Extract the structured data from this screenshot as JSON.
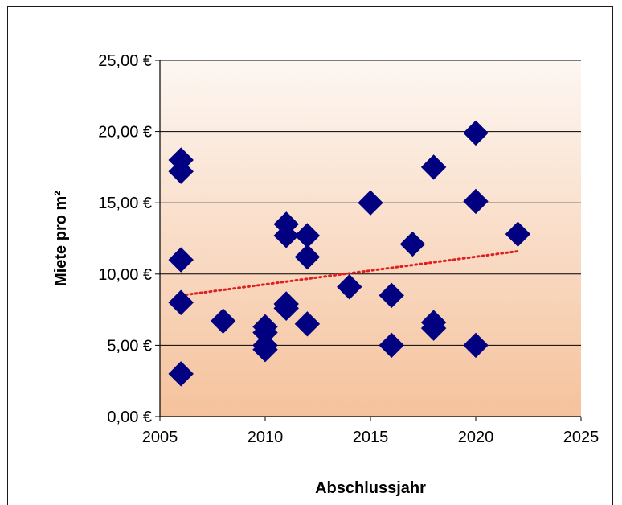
{
  "chart_data": {
    "type": "scatter",
    "title": "",
    "xlabel": "Abschlussjahr",
    "ylabel": "Miete pro m²",
    "xlim": [
      2005,
      2025
    ],
    "ylim": [
      0,
      25
    ],
    "x_ticks": [
      2005,
      2010,
      2015,
      2020,
      2025
    ],
    "x_tick_labels": [
      "2005",
      "2010",
      "2015",
      "2020",
      "2025"
    ],
    "y_ticks": [
      0,
      5,
      10,
      15,
      20,
      25
    ],
    "y_tick_labels": [
      "0,00 €",
      "5,00 €",
      "10,00 €",
      "15,00 €",
      "20,00 €",
      "25,00 €"
    ],
    "grid": "horizontal",
    "legend": "none",
    "marker": "diamond",
    "colors": {
      "marker": "#000080",
      "trendline": "#e02020",
      "plot_bg_top": "#fdf7f2",
      "plot_bg_bottom": "#f5c29c",
      "gridline": "#000000"
    },
    "series": [
      {
        "points": [
          {
            "x": 2006,
            "y": 18.0
          },
          {
            "x": 2006,
            "y": 17.2
          },
          {
            "x": 2006,
            "y": 11.0
          },
          {
            "x": 2006,
            "y": 8.0
          },
          {
            "x": 2006,
            "y": 3.0
          },
          {
            "x": 2008,
            "y": 6.7
          },
          {
            "x": 2010,
            "y": 6.3
          },
          {
            "x": 2010,
            "y": 5.9
          },
          {
            "x": 2010,
            "y": 5.0
          },
          {
            "x": 2010,
            "y": 4.7
          },
          {
            "x": 2011,
            "y": 13.5
          },
          {
            "x": 2011,
            "y": 12.7
          },
          {
            "x": 2011,
            "y": 7.9
          },
          {
            "x": 2011,
            "y": 7.6
          },
          {
            "x": 2012,
            "y": 12.7
          },
          {
            "x": 2012,
            "y": 11.2
          },
          {
            "x": 2012,
            "y": 6.5
          },
          {
            "x": 2014,
            "y": 9.1
          },
          {
            "x": 2015,
            "y": 15.0
          },
          {
            "x": 2016,
            "y": 8.5
          },
          {
            "x": 2016,
            "y": 5.0
          },
          {
            "x": 2017,
            "y": 12.1
          },
          {
            "x": 2018,
            "y": 17.5
          },
          {
            "x": 2018,
            "y": 6.6
          },
          {
            "x": 2018,
            "y": 6.2
          },
          {
            "x": 2020,
            "y": 19.9
          },
          {
            "x": 2020,
            "y": 15.1
          },
          {
            "x": 2020,
            "y": 5.0
          },
          {
            "x": 2022,
            "y": 12.8
          }
        ]
      }
    ],
    "trendline": {
      "type": "linear",
      "style": "dotted",
      "x": [
        2006,
        2022
      ],
      "y": [
        8.5,
        11.6
      ]
    }
  }
}
